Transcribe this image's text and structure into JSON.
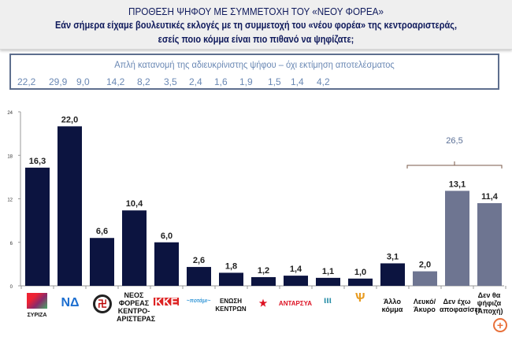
{
  "header": {
    "title": "ΠΡΟΘΕΣΗ ΨΗΦΟΥ ΜΕ ΣΥΜΜΕΤΟΧΗ ΤΟΥ «ΝΕΟΥ ΦΟΡΕΑ»",
    "question_line1": "Εάν σήμερα είχαμε βουλευτικές εκλογές με τη συμμετοχή του «νέου φορέα» της κεντροαριστεράς,",
    "question_line2": "εσείς ποιο κόμμα είναι πιο πιθανό να ψηφίζατε;"
  },
  "distribution_box": {
    "caption": "Απλή κατανομή της αδιευκρίνιστης ψήφου – όχι εκτίμηση αποτελέσματος",
    "values": [
      "22,2",
      "29,9",
      "9,0",
      "14,2",
      "8,2",
      "3,5",
      "2,4",
      "1,6",
      "1,9",
      "1,5",
      "1,4",
      "4,2"
    ]
  },
  "chart_data": {
    "type": "bar",
    "categories": [
      "ΣΥΡΙΖΑ",
      "ΝΔ",
      "Χρυσή Αυγή",
      "ΝΕΟΣ ΦΟΡΕΑΣ ΚΕΝΤΡΟ-ΑΡΙΣΤΕΡΑΣ",
      "ΚΚΕ",
      "Ποτάμι",
      "ΕΝΩΣΗ ΚΕΝΤΡΩΝ",
      "ΛΑΪΚΗ ΕΝΟΤΗΤΑ",
      "ΑΝΤΑΡΣΥΑ",
      "Πλεύση Ελευθερίας",
      "Δημιουργία, ξανά!",
      "Άλλο κόμμα",
      "Λευκό/ Άκυρο",
      "Δεν έχω αποφασίσει",
      "Δεν θα ψήφιζα (Αποχή)"
    ],
    "values": [
      16.3,
      22.0,
      6.6,
      10.4,
      6.0,
      2.6,
      1.8,
      1.2,
      1.4,
      1.1,
      1.0,
      3.1,
      2.0,
      13.1,
      11.4
    ],
    "value_labels": [
      "16,3",
      "22,0",
      "6,6",
      "10,4",
      "6,0",
      "2,6",
      "1,8",
      "1,2",
      "1,4",
      "1,1",
      "1,0",
      "3,1",
      "2,0",
      "13,1",
      "11,4"
    ],
    "yticks": [
      "0",
      "6",
      "12",
      "18",
      "24"
    ],
    "ylim": [
      0,
      24
    ],
    "grid": false,
    "colors": {
      "party": "#0c1440",
      "other": "#6e7591"
    },
    "bracket": {
      "label": "26,5",
      "spans": [
        "Λευκό/ Άκυρο",
        "Δεν θα ψήφιζα (Αποχή)"
      ]
    },
    "label_text": {
      "nd": "ΝΔ",
      "syriza": "ΣΥΡΙΖΑ",
      "kke": "ΚΚΕ",
      "neos": "ΝΕΟΣ ΦΟΡΕΑΣ ΚΕΝΤΡΟ-ΑΡΙΣΤΕΡΑΣ",
      "enosi": "ΕΝΩΣΗ ΚΕΝΤΡΩΝ",
      "antarsya": "ΑΝΤΑΡΣΥΑ",
      "allo": "Άλλο κόμμα",
      "lefko": "Λευκό/ Άκυρο",
      "den_exo": "Δεν έχω αποφασίσει",
      "apoxi": "Δεν θα ψήφιζα (Αποχή)"
    }
  }
}
